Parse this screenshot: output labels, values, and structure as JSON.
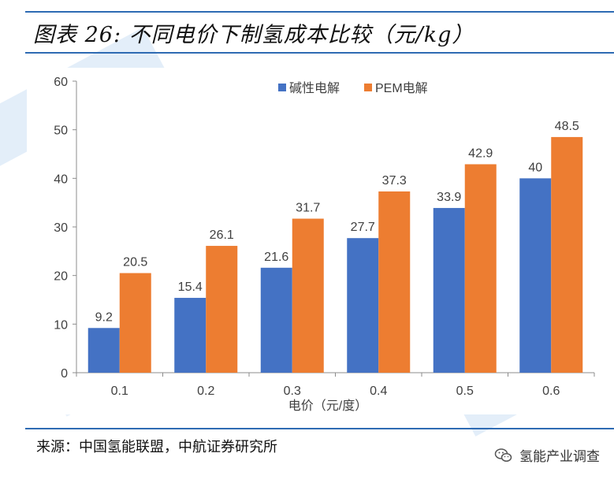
{
  "header": {
    "title": "图表 26: 不同电价下制氢成本比较（元/kg）"
  },
  "footer": {
    "source": "来源：中国氢能联盟，中航证券研究所",
    "brand": "氢能产业调查",
    "brand_icon": "wechat-icon"
  },
  "colors": {
    "accent": "#2e6bb3",
    "series_alkaline": "#4472c4",
    "series_pem": "#ed7d31"
  },
  "chart_data": {
    "type": "bar",
    "title": "",
    "xlabel": "电价（元/度）",
    "ylabel": "",
    "categories": [
      "0.1",
      "0.2",
      "0.3",
      "0.4",
      "0.5",
      "0.6"
    ],
    "series": [
      {
        "name": "碱性电解",
        "values": [
          9.2,
          15.4,
          21.6,
          27.7,
          33.9,
          40
        ],
        "labels": [
          "9.2",
          "15.4",
          "21.6",
          "27.7",
          "33.9",
          "40"
        ]
      },
      {
        "name": "PEM电解",
        "values": [
          20.5,
          26.1,
          31.7,
          37.3,
          42.9,
          48.5
        ],
        "labels": [
          "20.5",
          "26.1",
          "31.7",
          "37.3",
          "42.9",
          "48.5"
        ]
      }
    ],
    "ylim": [
      0,
      60
    ],
    "yticks": [
      "0",
      "10",
      "20",
      "30",
      "40",
      "50",
      "60"
    ],
    "grid": false,
    "legend": "top-center"
  }
}
